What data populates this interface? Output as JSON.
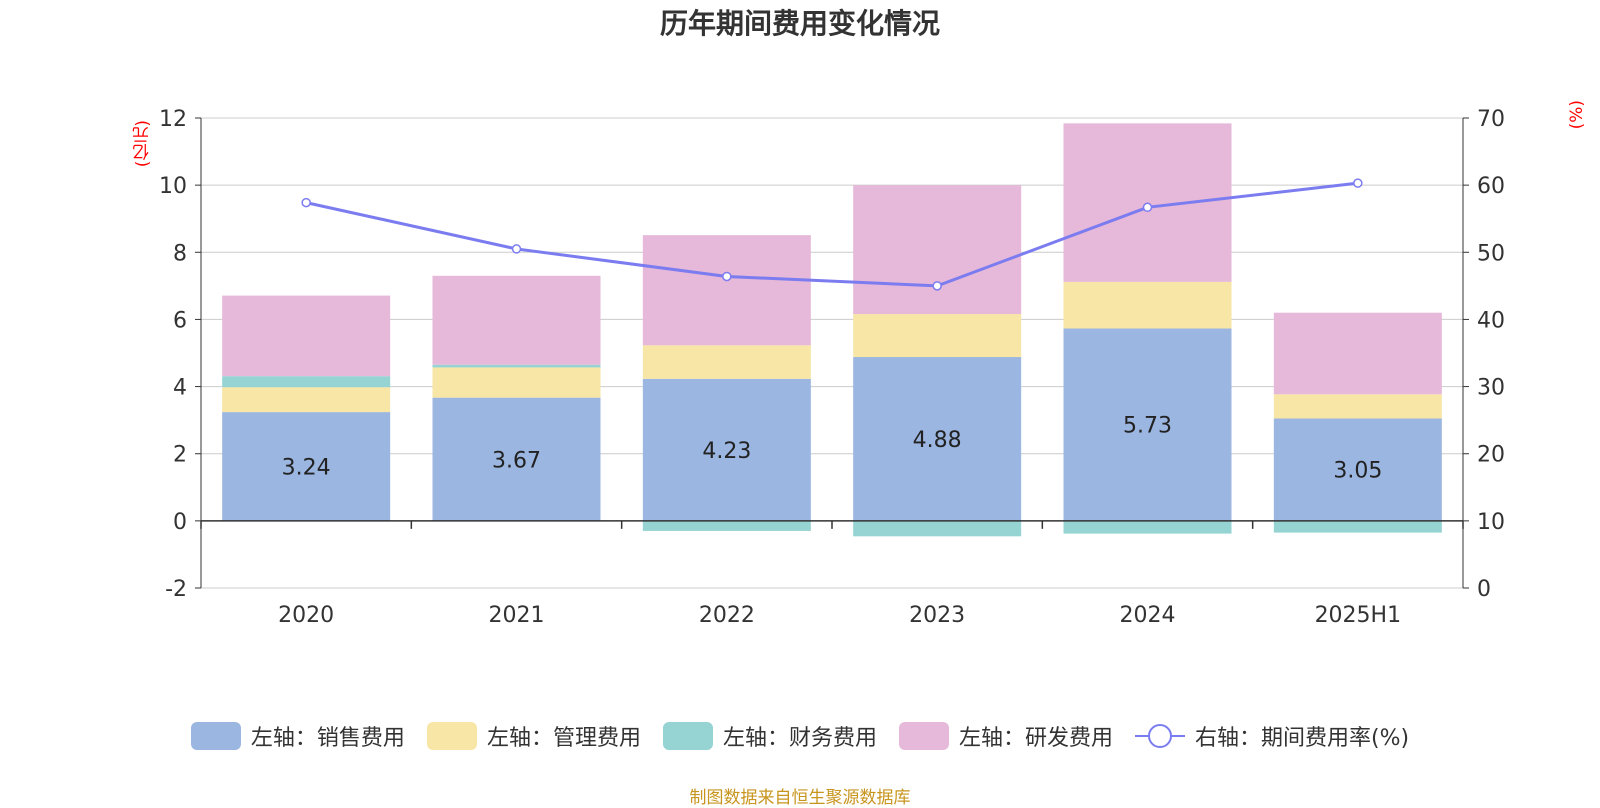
{
  "chart_data": {
    "type": "bar",
    "title": "历年期间费用变化情况",
    "categories": [
      "2020",
      "2021",
      "2022",
      "2023",
      "2024",
      "2025H1"
    ],
    "left_axis": {
      "unit": "(亿元)",
      "ylim": [
        -2,
        12
      ],
      "ticks": [
        -2,
        0,
        2,
        4,
        6,
        8,
        10,
        12
      ]
    },
    "right_axis": {
      "unit": "(%)",
      "ylim": [
        0,
        70
      ],
      "ticks": [
        0,
        10,
        20,
        30,
        40,
        50,
        60,
        70
      ]
    },
    "series": [
      {
        "name": "左轴：销售费用",
        "axis": "left",
        "type": "bar",
        "color": "#9bb6e0",
        "values": [
          3.24,
          3.67,
          4.23,
          4.88,
          5.73,
          3.05
        ],
        "show_labels": true
      },
      {
        "name": "左轴：管理费用",
        "axis": "left",
        "type": "bar",
        "color": "#f8e6a6",
        "values": [
          0.74,
          0.9,
          1.0,
          1.28,
          1.39,
          0.72
        ]
      },
      {
        "name": "左轴：财务费用",
        "axis": "left",
        "type": "bar",
        "color": "#96d4d4",
        "values": [
          0.33,
          0.08,
          -0.3,
          -0.46,
          -0.38,
          -0.35
        ]
      },
      {
        "name": "左轴：研发费用",
        "axis": "left",
        "type": "bar",
        "color": "#e6b8d9",
        "values": [
          2.4,
          2.65,
          3.28,
          3.84,
          4.72,
          2.43
        ]
      },
      {
        "name": "右轴：期间费用率(%)",
        "axis": "right",
        "type": "line",
        "color": "#7b7cf0",
        "values": [
          57.4,
          50.5,
          46.4,
          45.0,
          56.7,
          60.3
        ]
      }
    ],
    "grid": true,
    "legend_position": "bottom"
  },
  "source_note": "制图数据来自恒生聚源数据库"
}
